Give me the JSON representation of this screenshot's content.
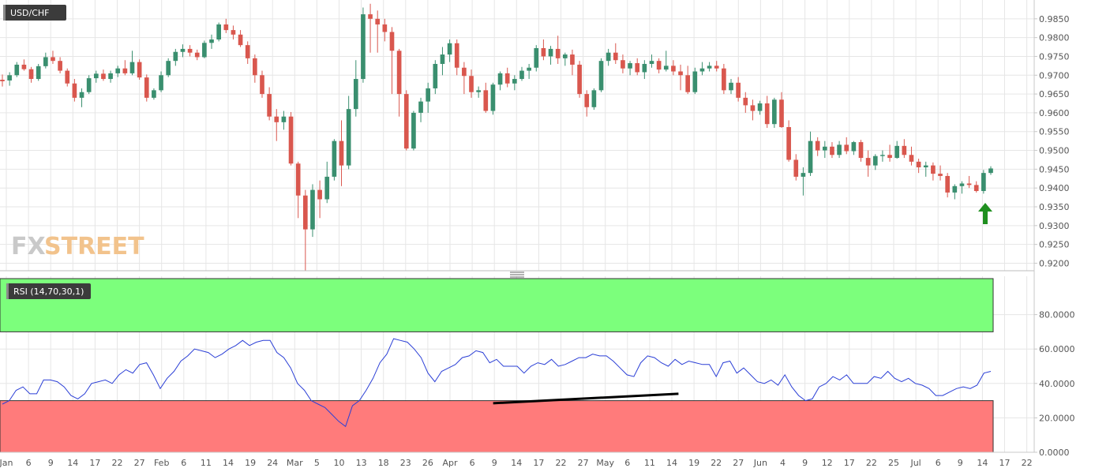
{
  "colors": {
    "bull": "#3a8f6f",
    "bear": "#d9574e",
    "rsi_line": "#2b3fd6",
    "overbought_zone": "#7cff7c",
    "oversold_zone": "#ff7b7b",
    "trendline": "#000000",
    "arrow": "#1f8f1f"
  },
  "icons": {
    "logo": "fxstreet-logo",
    "divider": "pane-resize-handle-icon",
    "arrow": "arrow-up-icon"
  },
  "logo": {
    "part1": "FX",
    "part2": "STREET"
  },
  "chart_data": [
    {
      "type": "candlestick",
      "title": "USD/CHF",
      "ylim": [
        0.918,
        0.99
      ],
      "y_ticks": [
        "0.9200",
        "0.9250",
        "0.9300",
        "0.9350",
        "0.9400",
        "0.9450",
        "0.9500",
        "0.9550",
        "0.9600",
        "0.9650",
        "0.9700",
        "0.9750",
        "0.9800",
        "0.9850"
      ],
      "x_ticks": [
        "Jan",
        "6",
        "9",
        "14",
        "17",
        "22",
        "27",
        "Feb",
        "6",
        "11",
        "14",
        "19",
        "24",
        "Mar",
        "5",
        "10",
        "13",
        "18",
        "23",
        "26",
        "Apr",
        "6",
        "9",
        "14",
        "17",
        "22",
        "27",
        "May",
        "6",
        "11",
        "14",
        "19",
        "22",
        "27",
        "Jun",
        "4",
        "9",
        "12",
        "17",
        "22",
        "25",
        "Jul",
        "6",
        "9",
        "14",
        "17",
        "22"
      ],
      "annotation": "up-arrow below latest candles",
      "ohlc": [
        [
          0.9688,
          0.9702,
          0.967,
          0.9684
        ],
        [
          0.9686,
          0.9708,
          0.9672,
          0.97
        ],
        [
          0.97,
          0.9735,
          0.9695,
          0.9728
        ],
        [
          0.9728,
          0.9742,
          0.9712,
          0.9716
        ],
        [
          0.9716,
          0.9722,
          0.968,
          0.969
        ],
        [
          0.969,
          0.973,
          0.9685,
          0.9724
        ],
        [
          0.9724,
          0.976,
          0.9718,
          0.9748
        ],
        [
          0.9748,
          0.9765,
          0.973,
          0.9738
        ],
        [
          0.9738,
          0.9748,
          0.9705,
          0.9712
        ],
        [
          0.9712,
          0.9718,
          0.967,
          0.9678
        ],
        [
          0.9678,
          0.969,
          0.963,
          0.964
        ],
        [
          0.964,
          0.9665,
          0.9615,
          0.9655
        ],
        [
          0.9655,
          0.97,
          0.965,
          0.9692
        ],
        [
          0.9692,
          0.9712,
          0.968,
          0.9704
        ],
        [
          0.9704,
          0.9715,
          0.9685,
          0.969
        ],
        [
          0.969,
          0.9712,
          0.968,
          0.9705
        ],
        [
          0.9705,
          0.9725,
          0.9695,
          0.9718
        ],
        [
          0.9718,
          0.974,
          0.97,
          0.9705
        ],
        [
          0.9705,
          0.9765,
          0.97,
          0.9735
        ],
        [
          0.9735,
          0.9742,
          0.9688,
          0.9694
        ],
        [
          0.9694,
          0.9702,
          0.963,
          0.964
        ],
        [
          0.964,
          0.9665,
          0.9635,
          0.966
        ],
        [
          0.966,
          0.971,
          0.9655,
          0.97
        ],
        [
          0.97,
          0.9745,
          0.9695,
          0.9738
        ],
        [
          0.9738,
          0.977,
          0.9725,
          0.9762
        ],
        [
          0.9762,
          0.9782,
          0.9748,
          0.977
        ],
        [
          0.977,
          0.978,
          0.975,
          0.976
        ],
        [
          0.976,
          0.9768,
          0.974,
          0.9748
        ],
        [
          0.9748,
          0.9792,
          0.9745,
          0.9786
        ],
        [
          0.9786,
          0.9808,
          0.977,
          0.9795
        ],
        [
          0.9795,
          0.984,
          0.979,
          0.9835
        ],
        [
          0.9835,
          0.985,
          0.9812,
          0.982
        ],
        [
          0.982,
          0.9832,
          0.9795,
          0.9808
        ],
        [
          0.9808,
          0.982,
          0.9775,
          0.978
        ],
        [
          0.978,
          0.979,
          0.973,
          0.9745
        ],
        [
          0.9745,
          0.9755,
          0.968,
          0.97
        ],
        [
          0.97,
          0.9712,
          0.964,
          0.965
        ],
        [
          0.965,
          0.9668,
          0.958,
          0.959
        ],
        [
          0.959,
          0.961,
          0.9525,
          0.9575
        ],
        [
          0.9575,
          0.9605,
          0.9555,
          0.959
        ],
        [
          0.959,
          0.9602,
          0.946,
          0.9465
        ],
        [
          0.9465,
          0.947,
          0.932,
          0.938
        ],
        [
          0.938,
          0.9395,
          0.918,
          0.929
        ],
        [
          0.929,
          0.941,
          0.927,
          0.9395
        ],
        [
          0.9395,
          0.942,
          0.932,
          0.937
        ],
        [
          0.937,
          0.947,
          0.936,
          0.943
        ],
        [
          0.943,
          0.953,
          0.942,
          0.9525
        ],
        [
          0.9525,
          0.958,
          0.9405,
          0.946
        ],
        [
          0.946,
          0.9645,
          0.945,
          0.961
        ],
        [
          0.961,
          0.974,
          0.959,
          0.969
        ],
        [
          0.969,
          0.988,
          0.968,
          0.9862
        ],
        [
          0.9862,
          0.989,
          0.976,
          0.985
        ],
        [
          0.985,
          0.9872,
          0.976,
          0.9835
        ],
        [
          0.9835,
          0.985,
          0.979,
          0.9815
        ],
        [
          0.9815,
          0.9828,
          0.965,
          0.9765
        ],
        [
          0.9765,
          0.977,
          0.959,
          0.965
        ],
        [
          0.965,
          0.966,
          0.95,
          0.9505
        ],
        [
          0.9505,
          0.9605,
          0.95,
          0.96
        ],
        [
          0.96,
          0.964,
          0.9575,
          0.963
        ],
        [
          0.963,
          0.968,
          0.96,
          0.9665
        ],
        [
          0.9665,
          0.974,
          0.965,
          0.973
        ],
        [
          0.973,
          0.9775,
          0.97,
          0.9755
        ],
        [
          0.9755,
          0.9795,
          0.9735,
          0.9785
        ],
        [
          0.9785,
          0.9795,
          0.97,
          0.972
        ],
        [
          0.972,
          0.9735,
          0.965,
          0.9698
        ],
        [
          0.9698,
          0.9715,
          0.964,
          0.9655
        ],
        [
          0.9655,
          0.967,
          0.964,
          0.966
        ],
        [
          0.966,
          0.968,
          0.96,
          0.9605
        ],
        [
          0.9605,
          0.968,
          0.9595,
          0.9675
        ],
        [
          0.9675,
          0.971,
          0.966,
          0.9705
        ],
        [
          0.9705,
          0.972,
          0.9668,
          0.9678
        ],
        [
          0.9678,
          0.97,
          0.966,
          0.969
        ],
        [
          0.969,
          0.9722,
          0.9685,
          0.9712
        ],
        [
          0.9712,
          0.973,
          0.969,
          0.972
        ],
        [
          0.972,
          0.978,
          0.971,
          0.9772
        ],
        [
          0.9772,
          0.9795,
          0.974,
          0.975
        ],
        [
          0.975,
          0.9778,
          0.9728,
          0.977
        ],
        [
          0.977,
          0.9805,
          0.973,
          0.9745
        ],
        [
          0.9745,
          0.976,
          0.9725,
          0.9755
        ],
        [
          0.9755,
          0.9768,
          0.97,
          0.9728
        ],
        [
          0.9728,
          0.9738,
          0.964,
          0.965
        ],
        [
          0.965,
          0.966,
          0.959,
          0.9615
        ],
        [
          0.9615,
          0.9665,
          0.9608,
          0.966
        ],
        [
          0.966,
          0.9745,
          0.9655,
          0.9738
        ],
        [
          0.9738,
          0.977,
          0.9725,
          0.976
        ],
        [
          0.976,
          0.9785,
          0.973,
          0.974
        ],
        [
          0.974,
          0.9755,
          0.9705,
          0.9718
        ],
        [
          0.9718,
          0.9738,
          0.97,
          0.9732
        ],
        [
          0.9732,
          0.9745,
          0.97,
          0.9708
        ],
        [
          0.9708,
          0.974,
          0.969,
          0.973
        ],
        [
          0.973,
          0.9755,
          0.972,
          0.9738
        ],
        [
          0.9738,
          0.9745,
          0.9705,
          0.9715
        ],
        [
          0.9715,
          0.9765,
          0.971,
          0.9725
        ],
        [
          0.9725,
          0.974,
          0.97,
          0.971
        ],
        [
          0.971,
          0.9728,
          0.966,
          0.97
        ],
        [
          0.97,
          0.9725,
          0.965,
          0.9655
        ],
        [
          0.9655,
          0.972,
          0.965,
          0.971
        ],
        [
          0.971,
          0.9735,
          0.97,
          0.9718
        ],
        [
          0.9718,
          0.9735,
          0.971,
          0.9725
        ],
        [
          0.9725,
          0.9738,
          0.971,
          0.9718
        ],
        [
          0.9718,
          0.973,
          0.965,
          0.966
        ],
        [
          0.966,
          0.969,
          0.965,
          0.968
        ],
        [
          0.968,
          0.9695,
          0.963,
          0.964
        ],
        [
          0.964,
          0.9655,
          0.96,
          0.962
        ],
        [
          0.962,
          0.9635,
          0.958,
          0.9605
        ],
        [
          0.9605,
          0.9632,
          0.9595,
          0.9625
        ],
        [
          0.9625,
          0.9645,
          0.956,
          0.957
        ],
        [
          0.957,
          0.964,
          0.956,
          0.9635
        ],
        [
          0.9635,
          0.9655,
          0.956,
          0.9562
        ],
        [
          0.9562,
          0.958,
          0.947,
          0.9475
        ],
        [
          0.9475,
          0.949,
          0.942,
          0.943
        ],
        [
          0.943,
          0.9455,
          0.938,
          0.944
        ],
        [
          0.944,
          0.955,
          0.9432,
          0.9525
        ],
        [
          0.9525,
          0.9535,
          0.9485,
          0.95
        ],
        [
          0.95,
          0.9525,
          0.948,
          0.951
        ],
        [
          0.951,
          0.9522,
          0.948,
          0.9488
        ],
        [
          0.9488,
          0.9525,
          0.948,
          0.9515
        ],
        [
          0.9515,
          0.9535,
          0.949,
          0.9498
        ],
        [
          0.9498,
          0.9525,
          0.9488,
          0.9522
        ],
        [
          0.9522,
          0.9528,
          0.947,
          0.948
        ],
        [
          0.948,
          0.95,
          0.943,
          0.946
        ],
        [
          0.946,
          0.949,
          0.9448,
          0.9485
        ],
        [
          0.9485,
          0.95,
          0.947,
          0.9488
        ],
        [
          0.9488,
          0.9515,
          0.947,
          0.948
        ],
        [
          0.948,
          0.9525,
          0.9478,
          0.9512
        ],
        [
          0.9512,
          0.953,
          0.948,
          0.9488
        ],
        [
          0.9488,
          0.951,
          0.946,
          0.947
        ],
        [
          0.947,
          0.9478,
          0.944,
          0.9455
        ],
        [
          0.9455,
          0.947,
          0.943,
          0.946
        ],
        [
          0.946,
          0.9468,
          0.942,
          0.9438
        ],
        [
          0.9438,
          0.946,
          0.942,
          0.9432
        ],
        [
          0.9432,
          0.944,
          0.9375,
          0.9388
        ],
        [
          0.9388,
          0.941,
          0.937,
          0.9405
        ],
        [
          0.9405,
          0.9418,
          0.9385,
          0.9412
        ],
        [
          0.9412,
          0.9432,
          0.94,
          0.9408
        ],
        [
          0.9408,
          0.9418,
          0.9388,
          0.9392
        ],
        [
          0.9392,
          0.9448,
          0.9385,
          0.944
        ],
        [
          0.944,
          0.9458,
          0.9435,
          0.9452
        ]
      ]
    },
    {
      "type": "line",
      "title": "RSI (14,70,30,1)",
      "ylim": [
        0,
        100
      ],
      "y_ticks": [
        "0.0000",
        "20.0000",
        "40.0000",
        "60.0000",
        "80.0000"
      ],
      "overbought": 70,
      "oversold": 30,
      "x_ticks": [
        "Jan",
        "6",
        "9",
        "14",
        "17",
        "22",
        "27",
        "Feb",
        "6",
        "11",
        "14",
        "19",
        "24",
        "Mar",
        "5",
        "10",
        "13",
        "18",
        "23",
        "26",
        "Apr",
        "6",
        "9",
        "14",
        "17",
        "22",
        "27",
        "May",
        "6",
        "11",
        "14",
        "19",
        "22",
        "27",
        "Jun",
        "4",
        "9",
        "12",
        "17",
        "22",
        "25",
        "Jul",
        "6",
        "9",
        "14",
        "17",
        "22"
      ],
      "trendline": {
        "x": [
          71.5,
          98.5
        ],
        "y": [
          28.5,
          34.0
        ]
      },
      "values": [
        28,
        30,
        36,
        38,
        34,
        34,
        42,
        42,
        41,
        38,
        33,
        31,
        34,
        40,
        41,
        42,
        40,
        45,
        48,
        46,
        51,
        52,
        45,
        37,
        43,
        47,
        53,
        56,
        60,
        59,
        58,
        55,
        57,
        60,
        62,
        65,
        62,
        64,
        65,
        65,
        58,
        55,
        49,
        40,
        36,
        30,
        28,
        26,
        22,
        18,
        15,
        27,
        30,
        36,
        43,
        52,
        57,
        66,
        65,
        64,
        60,
        55,
        46,
        41,
        47,
        49,
        51,
        55,
        56,
        59,
        58,
        52,
        54,
        50,
        50,
        50,
        46,
        50,
        52,
        51,
        54,
        50,
        51,
        53,
        55,
        55,
        57,
        56,
        56,
        53,
        49,
        45,
        44,
        52,
        56,
        55,
        52,
        50,
        54,
        51,
        53,
        52,
        51,
        51,
        44,
        52,
        53,
        46,
        49,
        45,
        41,
        40,
        42,
        39,
        45,
        38,
        33,
        30,
        31,
        38,
        40,
        44,
        42,
        45,
        40,
        40,
        40,
        44,
        43,
        47,
        43,
        41,
        43,
        40,
        39,
        37,
        33,
        33,
        35,
        37,
        38,
        37,
        39,
        46,
        47
      ]
    }
  ]
}
